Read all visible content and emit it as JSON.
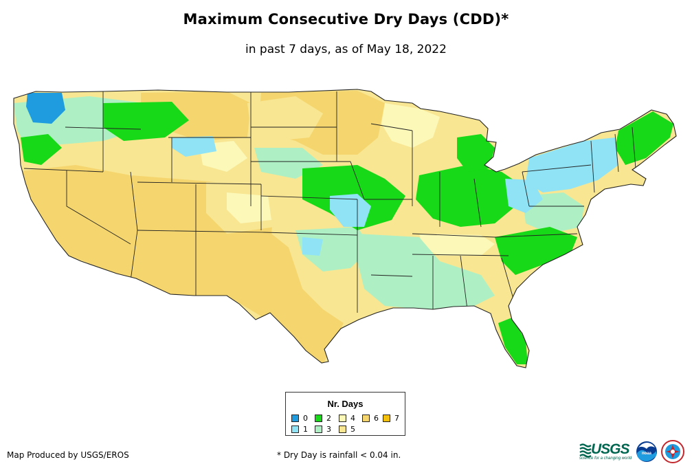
{
  "header": {
    "title": "Maximum Consecutive Dry Days (CDD)*",
    "subtitle": "in past 7 days, as of May 18, 2022"
  },
  "legend": {
    "title": "Nr. Days",
    "items": [
      {
        "label": "0",
        "color": "#1f9be0"
      },
      {
        "label": "1",
        "color": "#8fe3f5"
      },
      {
        "label": "2",
        "color": "#17d917"
      },
      {
        "label": "3",
        "color": "#aef0c4"
      },
      {
        "label": "4",
        "color": "#fbf8b8"
      },
      {
        "label": "5",
        "color": "#f8e692"
      },
      {
        "label": "6",
        "color": "#f5d66e"
      },
      {
        "label": "7",
        "color": "#f3c10d"
      }
    ]
  },
  "footer": {
    "credit": "Map Produced by USGS/EROS",
    "note": "* Dry Day is rainfall < 0.04 in."
  },
  "logos": {
    "usgs_word": "USGS",
    "usgs_tagline": "science for a changing world",
    "noaa_word": "noaa"
  }
}
